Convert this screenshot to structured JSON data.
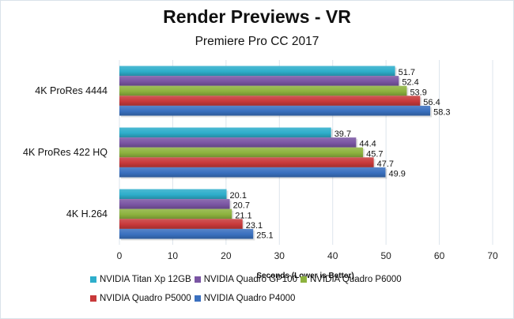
{
  "chart_data": {
    "type": "bar",
    "orientation": "horizontal",
    "title": "Render Previews - VR",
    "subtitle": "Premiere Pro CC 2017",
    "xlabel": "Seconds  (Lower is Better)",
    "ylabel": "",
    "xlim": [
      0,
      70
    ],
    "xticks": [
      "0",
      "10",
      "20",
      "30",
      "40",
      "50",
      "60",
      "70"
    ],
    "grid": true,
    "legend_position": "bottom",
    "categories": [
      "4K ProRes 4444",
      "4K ProRes 422 HQ",
      "4K H.264"
    ],
    "series": [
      {
        "name": "NVIDIA Titan Xp 12GB",
        "color": "#2eaecb",
        "values": [
          51.7,
          39.7,
          20.1
        ]
      },
      {
        "name": "NVIDIA Quadro GP100",
        "color": "#7a55a3",
        "values": [
          52.4,
          44.4,
          20.7
        ]
      },
      {
        "name": "NVIDIA Quadro P6000",
        "color": "#8db23e",
        "values": [
          53.9,
          45.7,
          21.1
        ]
      },
      {
        "name": "NVIDIA Quadro P5000",
        "color": "#c8393a",
        "values": [
          56.4,
          47.7,
          23.1
        ]
      },
      {
        "name": "NVIDIA Quadro P4000",
        "color": "#3a70bf",
        "values": [
          58.3,
          49.9,
          25.1
        ]
      }
    ]
  }
}
